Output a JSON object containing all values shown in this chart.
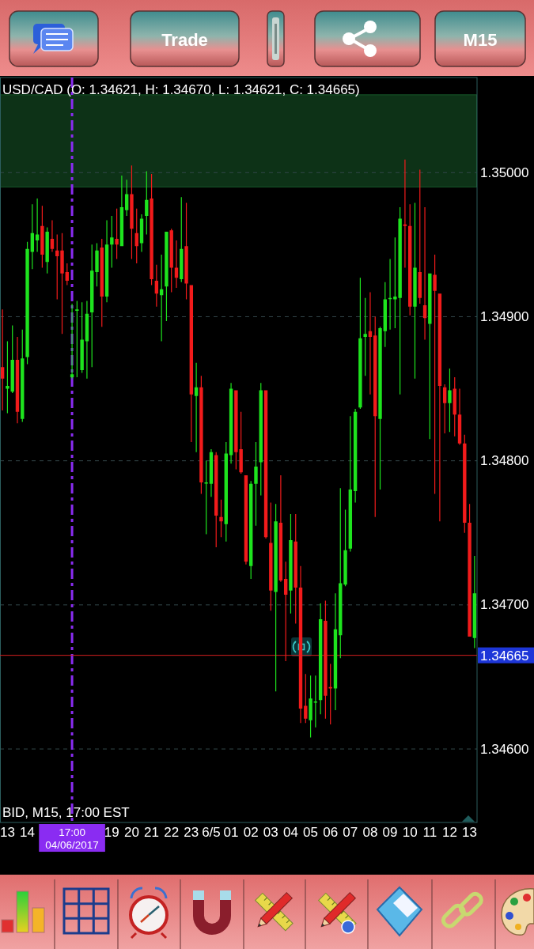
{
  "chart_data": {
    "type": "candlestick",
    "title": "USD/CAD (O: 1.34621, H: 1.34670, L: 1.34621, C: 1.34665)",
    "annotations": [
      "BID, M15, 17:00 EST",
      "Trade",
      "M15"
    ],
    "categories": [
      null,
      "13",
      null,
      null,
      null,
      "14",
      null,
      null,
      null,
      null,
      null,
      null,
      null,
      null,
      "17:00 04/06/2017",
      null,
      null,
      null,
      null,
      null,
      null,
      null,
      "19",
      null,
      null,
      null,
      "20",
      null,
      null,
      null,
      "21",
      null,
      null,
      null,
      "22",
      null,
      null,
      null,
      "23",
      null,
      null,
      null,
      "6/5",
      null,
      null,
      null,
      "01",
      null,
      null,
      null,
      "02",
      null,
      null,
      null,
      "03",
      null,
      null,
      null,
      "04",
      null,
      null,
      null,
      "05",
      null,
      null,
      null,
      "06",
      null,
      null,
      null,
      "07",
      null,
      null,
      null,
      "08",
      null,
      null,
      null,
      "09",
      null,
      null,
      null,
      "10",
      null,
      null,
      null,
      "11",
      null,
      null,
      null,
      "12",
      null,
      null,
      null,
      "13",
      null
    ],
    "ohlc": [
      [
        1.34865,
        1.34905,
        1.34835,
        1.34857
      ],
      [
        1.3485,
        1.34883,
        1.34833,
        1.34852
      ],
      [
        1.34848,
        1.34894,
        1.34847,
        1.3487
      ],
      [
        1.3487,
        1.34886,
        1.34826,
        1.34834
      ],
      [
        1.34829,
        1.34891,
        1.34827,
        1.34871
      ],
      [
        1.34872,
        1.34952,
        1.34867,
        1.34947
      ],
      [
        1.34945,
        1.34978,
        1.34933,
        1.34958
      ],
      [
        1.34953,
        1.34982,
        1.34945,
        1.34957
      ],
      [
        1.34963,
        1.34977,
        1.34934,
        1.34943
      ],
      [
        1.34938,
        1.34962,
        1.3493,
        1.34959
      ],
      [
        1.34954,
        1.34967,
        1.34945,
        1.34947
      ],
      [
        1.34946,
        1.34957,
        1.34912,
        1.34942
      ],
      [
        1.34946,
        1.34958,
        1.34888,
        1.3493
      ],
      [
        1.34931,
        1.34937,
        1.34922,
        1.34925
      ],
      [
        1.34858,
        1.34909,
        1.34857,
        1.3486
      ],
      [
        1.34905,
        1.34911,
        1.34858,
        1.34905
      ],
      [
        1.34863,
        1.3491,
        1.34861,
        1.34884
      ],
      [
        1.34883,
        1.34911,
        1.34857,
        1.34902
      ],
      [
        1.34903,
        1.3495,
        1.34865,
        1.34932
      ],
      [
        1.34931,
        1.34951,
        1.34921,
        1.34946
      ],
      [
        1.34948,
        1.34954,
        1.34893,
        1.34914
      ],
      [
        1.34914,
        1.34967,
        1.3491,
        1.3495
      ],
      [
        1.3495,
        1.3497,
        1.34934,
        1.34955
      ],
      [
        1.34954,
        1.34975,
        1.3494,
        1.3495
      ],
      [
        1.34949,
        1.34998,
        1.34949,
        1.34976
      ],
      [
        1.34974,
        1.34995,
        1.3497,
        1.34985
      ],
      [
        1.34985,
        1.35005,
        1.3494,
        1.34961
      ],
      [
        1.34958,
        1.34975,
        1.34937,
        1.34949
      ],
      [
        1.34951,
        1.34971,
        1.34945,
        1.34968
      ],
      [
        1.3497,
        1.35001,
        1.34957,
        1.34981
      ],
      [
        1.34982,
        1.34999,
        1.34922,
        1.34926
      ],
      [
        1.34925,
        1.34936,
        1.34907,
        1.34916
      ],
      [
        1.34915,
        1.34943,
        1.34883,
        1.34919
      ],
      [
        1.34921,
        1.34959,
        1.34897,
        1.34959
      ],
      [
        1.3496,
        1.34961,
        1.34917,
        1.34934
      ],
      [
        1.34934,
        1.34953,
        1.3492,
        1.34927
      ],
      [
        1.34926,
        1.34983,
        1.34924,
        1.34947
      ],
      [
        1.34949,
        1.34979,
        1.34912,
        1.34923
      ],
      [
        1.34922,
        1.34922,
        1.34813,
        1.34846
      ],
      [
        1.34845,
        1.34868,
        1.34806,
        1.34851
      ],
      [
        1.34851,
        1.34859,
        1.34777,
        1.34785
      ],
      [
        1.34785,
        1.348,
        1.34749,
        1.34785
      ],
      [
        1.34784,
        1.34808,
        1.34775,
        1.34806
      ],
      [
        1.34804,
        1.34806,
        1.3474,
        1.34762
      ],
      [
        1.34761,
        1.34773,
        1.34747,
        1.34758
      ],
      [
        1.34756,
        1.34813,
        1.34744,
        1.34805
      ],
      [
        1.34804,
        1.34854,
        1.34798,
        1.3485
      ],
      [
        1.34849,
        1.34849,
        1.34794,
        1.34806
      ],
      [
        1.34808,
        1.34834,
        1.34791,
        1.34792
      ],
      [
        1.3479,
        1.3479,
        1.34728,
        1.3473
      ],
      [
        1.34727,
        1.34786,
        1.34718,
        1.34784
      ],
      [
        1.34784,
        1.34813,
        1.34755,
        1.34796
      ],
      [
        1.34799,
        1.34854,
        1.34776,
        1.34849
      ],
      [
        1.34849,
        1.34849,
        1.34746,
        1.34747
      ],
      [
        1.34743,
        1.34771,
        1.34696,
        1.3471
      ],
      [
        1.34709,
        1.3477,
        1.3464,
        1.34758
      ],
      [
        1.34757,
        1.3479,
        1.34716,
        1.34717
      ],
      [
        1.34718,
        1.3473,
        1.34661,
        1.34707
      ],
      [
        1.3471,
        1.34763,
        1.34694,
        1.34745
      ],
      [
        1.34744,
        1.34763,
        1.34687,
        1.34712
      ],
      [
        1.34712,
        1.34727,
        1.34618,
        1.34628
      ],
      [
        1.3463,
        1.34652,
        1.34618,
        1.34621
      ],
      [
        1.3462,
        1.34651,
        1.34608,
        1.34635
      ],
      [
        1.34633,
        1.34651,
        1.34615,
        1.34633
      ],
      [
        1.34634,
        1.34701,
        1.34624,
        1.3469
      ],
      [
        1.34689,
        1.34703,
        1.34621,
        1.34637
      ],
      [
        1.34643,
        1.34659,
        1.34617,
        1.34642
      ],
      [
        1.34642,
        1.34708,
        1.34627,
        1.34683
      ],
      [
        1.34679,
        1.34781,
        1.34663,
        1.34715
      ],
      [
        1.34714,
        1.34766,
        1.34713,
        1.34738
      ],
      [
        1.34739,
        1.34831,
        1.34737,
        1.3478
      ],
      [
        1.34779,
        1.34836,
        1.34771,
        1.34834
      ],
      [
        1.34837,
        1.34927,
        1.34836,
        1.34885
      ],
      [
        1.34886,
        1.34913,
        1.34859,
        1.34888
      ],
      [
        1.3489,
        1.34917,
        1.34846,
        1.34886
      ],
      [
        1.34887,
        1.349,
        1.34761,
        1.34831
      ],
      [
        1.34829,
        1.34893,
        1.3478,
        1.34892
      ],
      [
        1.3489,
        1.34924,
        1.34879,
        1.34912
      ],
      [
        1.34913,
        1.3494,
        1.34891,
        1.34913
      ],
      [
        1.34912,
        1.34955,
        1.34892,
        1.34914
      ],
      [
        1.34913,
        1.34976,
        1.34846,
        1.34968
      ],
      [
        1.34964,
        1.35009,
        1.34934,
        1.34963
      ],
      [
        1.34963,
        1.34978,
        1.34901,
        1.34907
      ],
      [
        1.34907,
        1.34979,
        1.34857,
        1.34934
      ],
      [
        1.34931,
        1.35002,
        1.34909,
        1.34913
      ],
      [
        1.34908,
        1.34976,
        1.34884,
        1.34899
      ],
      [
        1.34895,
        1.3493,
        1.34815,
        1.3493
      ],
      [
        1.34929,
        1.34943,
        1.34777,
        1.34918
      ],
      [
        1.34916,
        1.34916,
        1.34758,
        1.34852
      ],
      [
        1.34851,
        1.34853,
        1.34819,
        1.3484
      ],
      [
        1.3484,
        1.34864,
        1.3482,
        1.34849
      ],
      [
        1.3485,
        1.34858,
        1.34817,
        1.34832
      ],
      [
        1.34832,
        1.3485,
        1.34811,
        1.34812
      ],
      [
        1.34812,
        1.34818,
        1.3475,
        1.34757
      ],
      [
        1.34757,
        1.3477,
        1.34678,
        1.34678
      ],
      [
        1.34677,
        1.34734,
        1.3467,
        1.34708
      ]
    ],
    "colors": [
      "#f21b1b",
      "#1ee41e",
      "#1ee41e",
      "#f21b1b",
      "#1ee41e",
      "#1ee41e",
      "#1ee41e",
      "#1ee41e",
      "#f21b1b",
      "#1ee41e",
      "#f21b1b",
      "#f21b1b",
      "#f21b1b",
      "#f21b1b",
      "#1ee41e",
      "#1ee41e",
      "#1ee41e",
      "#1ee41e",
      "#1ee41e",
      "#1ee41e",
      "#f21b1b",
      "#1ee41e",
      "#1ee41e",
      "#f21b1b",
      "#1ee41e",
      "#1ee41e",
      "#f21b1b",
      "#f21b1b",
      "#1ee41e",
      "#1ee41e",
      "#f21b1b",
      "#f21b1b",
      "#1ee41e",
      "#1ee41e",
      "#f21b1b",
      "#f21b1b",
      "#1ee41e",
      "#f21b1b",
      "#f21b1b",
      "#1ee41e",
      "#f21b1b",
      "#1ee41e",
      "#1ee41e",
      "#f21b1b",
      "#f21b1b",
      "#1ee41e",
      "#1ee41e",
      "#f21b1b",
      "#f21b1b",
      "#f21b1b",
      "#1ee41e",
      "#1ee41e",
      "#1ee41e",
      "#f21b1b",
      "#f21b1b",
      "#1ee41e",
      "#f21b1b",
      "#f21b1b",
      "#1ee41e",
      "#f21b1b",
      "#f21b1b",
      "#f21b1b",
      "#1ee41e",
      "#1ee41e",
      "#1ee41e",
      "#f21b1b",
      "#f21b1b",
      "#1ee41e",
      "#1ee41e",
      "#1ee41e",
      "#1ee41e",
      "#1ee41e",
      "#1ee41e",
      "#1ee41e",
      "#f21b1b",
      "#f21b1b",
      "#1ee41e",
      "#1ee41e",
      "#1ee41e",
      "#1ee41e",
      "#1ee41e",
      "#f21b1b",
      "#f21b1b",
      "#1ee41e",
      "#f21b1b",
      "#f21b1b",
      "#1ee41e",
      "#f21b1b",
      "#f21b1b",
      "#f21b1b",
      "#1ee41e",
      "#f21b1b",
      "#f21b1b",
      "#f21b1b",
      "#f21b1b",
      "#1ee41e"
    ],
    "ylim": [
      1.34549,
      1.35066
    ],
    "yticks": [
      {
        "value": 1.346,
        "label": "1.34600"
      },
      {
        "value": 1.347,
        "label": "1.34700"
      },
      {
        "value": 1.348,
        "label": "1.34800"
      },
      {
        "value": 1.349,
        "label": "1.34900"
      },
      {
        "value": 1.35,
        "label": "1.35000"
      }
    ],
    "grid": "y",
    "bands": [
      {
        "axis": "y",
        "from": 1.3499,
        "to": 1.35054,
        "color": "#0d3217"
      }
    ],
    "ref_lines": [
      {
        "axis": "x",
        "value": "17:00 04/06/2017",
        "color": "#8a2cf2",
        "line_style": "dashed"
      },
      {
        "axis": "y",
        "value": 1.34665,
        "label": "1.34665",
        "color": "#d42020"
      }
    ]
  }
}
